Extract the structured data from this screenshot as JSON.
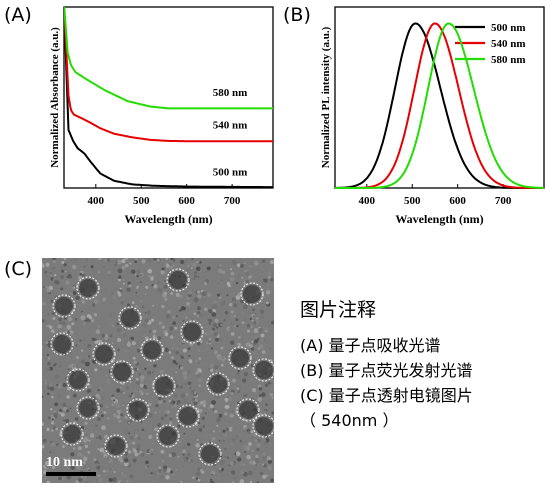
{
  "panels": {
    "a_label": "(A)",
    "b_label": "(B)",
    "c_label": "(C)"
  },
  "chart_data": [
    {
      "type": "line",
      "panel": "(A)",
      "xlabel": "Wavelength (nm)",
      "ylabel": "Normalized Absorbance (a.u.)",
      "xlim": [
        330,
        790
      ],
      "ylim": [
        0,
        1
      ],
      "xticks": [
        400,
        500,
        600,
        700
      ],
      "grid": false,
      "series": [
        {
          "name": "500 nm",
          "color": "#000000",
          "x": [
            330,
            340,
            350,
            360,
            375,
            390,
            410,
            440,
            480,
            530,
            600,
            700,
            790
          ],
          "y": [
            1.02,
            0.32,
            0.26,
            0.22,
            0.19,
            0.14,
            0.08,
            0.04,
            0.02,
            0.012,
            0.008,
            0.006,
            0.005
          ]
        },
        {
          "name": "540 nm",
          "color": "#e60000",
          "x": [
            330,
            340,
            345,
            352,
            365,
            385,
            410,
            440,
            480,
            520,
            560,
            620,
            700,
            790
          ],
          "y": [
            1.02,
            0.51,
            0.43,
            0.405,
            0.39,
            0.365,
            0.33,
            0.3,
            0.28,
            0.266,
            0.26,
            0.258,
            0.258,
            0.258
          ]
        },
        {
          "name": "580 nm",
          "color": "#22dd00",
          "x": [
            330,
            338,
            345,
            355,
            380,
            420,
            470,
            520,
            560,
            600,
            650,
            700,
            790
          ],
          "y": [
            1.02,
            0.75,
            0.68,
            0.64,
            0.6,
            0.54,
            0.48,
            0.45,
            0.44,
            0.44,
            0.44,
            0.44,
            0.44
          ]
        }
      ],
      "annotations": [
        "580 nm",
        "540 nm",
        "500 nm"
      ]
    },
    {
      "type": "line",
      "panel": "(B)",
      "xlabel": "Wavelength (nm)",
      "ylabel": "Normalized PL intensity (a.u.)",
      "xlim": [
        330,
        790
      ],
      "ylim": [
        0,
        1.1
      ],
      "xticks": [
        400,
        500,
        600,
        700
      ],
      "grid": false,
      "legend_position": "top-right",
      "series": [
        {
          "name": "500 nm",
          "color": "#000000",
          "peak": 507,
          "width_left": 45,
          "width_right": 55
        },
        {
          "name": "540 nm",
          "color": "#e60000",
          "peak": 550,
          "width_left": 45,
          "width_right": 52
        },
        {
          "name": "580 nm",
          "color": "#22dd00",
          "peak": 580,
          "width_left": 45,
          "width_right": 55
        }
      ]
    }
  ],
  "tem": {
    "scalebar_label": "10 nm"
  },
  "caption": {
    "title": "图片注释",
    "line_a": "(A) 量子点吸收光谱",
    "line_b": "(B) 量子点荧光发射光谱",
    "line_c": "(C) 量子点透射电镜图片",
    "line_c2": "（ 540nm ）"
  }
}
